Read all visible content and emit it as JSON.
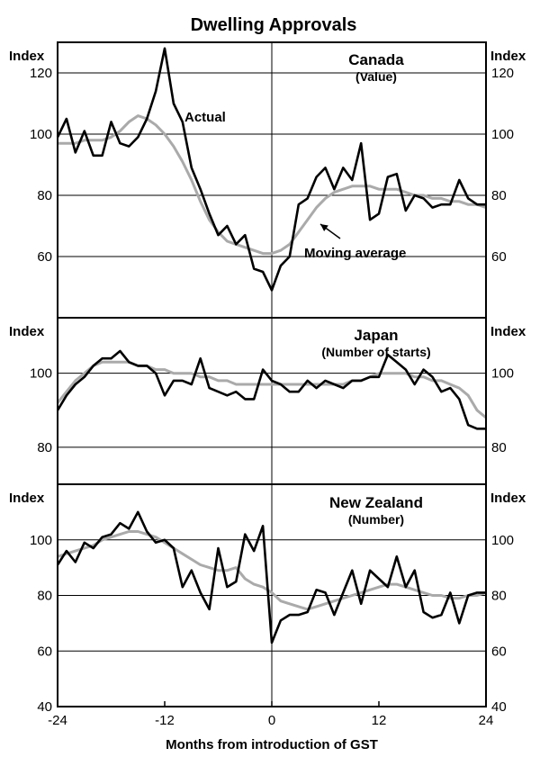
{
  "title": "Dwelling Approvals",
  "x_axis_label": "Months from introduction of GST",
  "chart_data": [
    {
      "type": "line",
      "title": "Canada",
      "subtitle": "(Value)",
      "ylabel": "Index",
      "xlim": [
        -24,
        24
      ],
      "ylim": [
        40,
        130
      ],
      "yticks": [
        60,
        80,
        100,
        120
      ],
      "annotations": [
        "Actual",
        "Moving average"
      ],
      "series": [
        {
          "style": "actual",
          "color": "#000000",
          "x": [
            -24,
            -23,
            -22,
            -21,
            -20,
            -19,
            -18,
            -17,
            -16,
            -15,
            -14,
            -13,
            -12,
            -11,
            -10,
            -9,
            -8,
            -7,
            -6,
            -5,
            -4,
            -3,
            -2,
            -1,
            0,
            1,
            2,
            3,
            4,
            5,
            6,
            7,
            8,
            9,
            10,
            11,
            12,
            13,
            14,
            15,
            16,
            17,
            18,
            19,
            20,
            21,
            22,
            23,
            24
          ],
          "values": [
            99,
            105,
            94,
            101,
            93,
            93,
            104,
            97,
            96,
            99,
            105,
            114,
            128,
            110,
            104,
            89,
            82,
            74,
            67,
            70,
            64,
            67,
            56,
            55,
            49,
            57,
            60,
            77,
            79,
            86,
            89,
            82,
            89,
            85,
            97,
            72,
            74,
            86,
            87,
            75,
            80,
            79,
            76,
            77,
            77,
            85,
            79,
            77,
            77
          ]
        },
        {
          "style": "moving-average",
          "color": "#aaaaaa",
          "x": [
            -24,
            -23,
            -22,
            -21,
            -20,
            -19,
            -18,
            -17,
            -16,
            -15,
            -14,
            -13,
            -12,
            -11,
            -10,
            -9,
            -8,
            -7,
            -6,
            -5,
            -4,
            -3,
            -2,
            -1,
            0,
            1,
            2,
            3,
            4,
            5,
            6,
            7,
            8,
            9,
            10,
            11,
            12,
            13,
            14,
            15,
            16,
            17,
            18,
            19,
            20,
            21,
            22,
            23,
            24
          ],
          "values": [
            97,
            97,
            97,
            98,
            98,
            98,
            99,
            101,
            104,
            106,
            105,
            103,
            100,
            96,
            91,
            85,
            78,
            72,
            68,
            65,
            64,
            63,
            62,
            61,
            61,
            62,
            64,
            68,
            72,
            76,
            79,
            81,
            82,
            83,
            83,
            83,
            82,
            82,
            82,
            81,
            80,
            80,
            79,
            79,
            78,
            78,
            77,
            77,
            76
          ]
        }
      ]
    },
    {
      "type": "line",
      "title": "Japan",
      "subtitle": "(Number of starts)",
      "ylabel": "Index",
      "xlim": [
        -24,
        24
      ],
      "ylim": [
        70,
        115
      ],
      "yticks": [
        80,
        100
      ],
      "series": [
        {
          "style": "actual",
          "color": "#000000",
          "x": [
            -24,
            -23,
            -22,
            -21,
            -20,
            -19,
            -18,
            -17,
            -16,
            -15,
            -14,
            -13,
            -12,
            -11,
            -10,
            -9,
            -8,
            -7,
            -6,
            -5,
            -4,
            -3,
            -2,
            -1,
            0,
            1,
            2,
            3,
            4,
            5,
            6,
            7,
            8,
            9,
            10,
            11,
            12,
            13,
            14,
            15,
            16,
            17,
            18,
            19,
            20,
            21,
            22,
            23,
            24
          ],
          "values": [
            90,
            94,
            97,
            99,
            102,
            104,
            104,
            106,
            103,
            102,
            102,
            100,
            94,
            98,
            98,
            97,
            104,
            96,
            95,
            94,
            95,
            93,
            93,
            101,
            98,
            97,
            95,
            95,
            98,
            96,
            98,
            97,
            96,
            98,
            98,
            99,
            99,
            105,
            103,
            101,
            97,
            101,
            99,
            95,
            96,
            93,
            86,
            85,
            85
          ]
        },
        {
          "style": "moving-average",
          "color": "#aaaaaa",
          "x": [
            -24,
            -23,
            -22,
            -21,
            -20,
            -19,
            -18,
            -17,
            -16,
            -15,
            -14,
            -13,
            -12,
            -11,
            -10,
            -9,
            -8,
            -7,
            -6,
            -5,
            -4,
            -3,
            -2,
            -1,
            0,
            1,
            2,
            3,
            4,
            5,
            6,
            7,
            8,
            9,
            10,
            11,
            12,
            13,
            14,
            15,
            16,
            17,
            18,
            19,
            20,
            21,
            22,
            23,
            24
          ],
          "values": [
            92,
            95,
            98,
            100,
            102,
            103,
            103,
            103,
            103,
            102,
            102,
            101,
            101,
            100,
            100,
            100,
            99,
            99,
            98,
            98,
            97,
            97,
            97,
            97,
            97,
            97,
            97,
            97,
            97,
            97,
            97,
            97,
            97,
            98,
            98,
            99,
            100,
            100,
            100,
            100,
            99,
            99,
            98,
            98,
            97,
            96,
            94,
            90,
            88
          ]
        }
      ]
    },
    {
      "type": "line",
      "title": "New Zealand",
      "subtitle": "(Number)",
      "ylabel": "Index",
      "xlabel": "Months from introduction of GST",
      "xlim": [
        -24,
        24
      ],
      "ylim": [
        40,
        120
      ],
      "yticks": [
        40,
        60,
        80,
        100
      ],
      "xticks": [
        -24,
        -12,
        0,
        12,
        24
      ],
      "series": [
        {
          "style": "actual",
          "color": "#000000",
          "x": [
            -24,
            -23,
            -22,
            -21,
            -20,
            -19,
            -18,
            -17,
            -16,
            -15,
            -14,
            -13,
            -12,
            -11,
            -10,
            -9,
            -8,
            -7,
            -6,
            -5,
            -4,
            -3,
            -2,
            -1,
            0,
            1,
            2,
            3,
            4,
            5,
            6,
            7,
            8,
            9,
            10,
            11,
            12,
            13,
            14,
            15,
            16,
            17,
            18,
            19,
            20,
            21,
            22,
            23,
            24
          ],
          "values": [
            91,
            96,
            92,
            99,
            97,
            101,
            102,
            106,
            104,
            110,
            103,
            99,
            100,
            97,
            83,
            89,
            81,
            75,
            97,
            83,
            85,
            102,
            96,
            105,
            63,
            71,
            73,
            73,
            74,
            82,
            81,
            73,
            81,
            89,
            77,
            89,
            86,
            83,
            94,
            83,
            89,
            74,
            72,
            73,
            81,
            70,
            80,
            81,
            81
          ]
        },
        {
          "style": "moving-average",
          "color": "#aaaaaa",
          "x": [
            -24,
            -23,
            -22,
            -21,
            -20,
            -19,
            -18,
            -17,
            -16,
            -15,
            -14,
            -13,
            -12,
            -11,
            -10,
            -9,
            -8,
            -7,
            -6,
            -5,
            -4,
            -3,
            -2,
            -1,
            0,
            1,
            2,
            3,
            4,
            5,
            6,
            7,
            8,
            9,
            10,
            11,
            12,
            13,
            14,
            15,
            16,
            17,
            18,
            19,
            20,
            21,
            22,
            23,
            24
          ],
          "values": [
            94,
            95,
            96,
            97,
            98,
            100,
            101,
            102,
            103,
            103,
            102,
            101,
            99,
            97,
            95,
            93,
            91,
            90,
            89,
            89,
            90,
            86,
            84,
            83,
            81,
            78,
            77,
            76,
            75,
            76,
            77,
            78,
            79,
            80,
            81,
            82,
            83,
            84,
            84,
            83,
            82,
            81,
            80,
            80,
            79,
            79,
            80,
            80,
            81
          ]
        }
      ]
    }
  ]
}
